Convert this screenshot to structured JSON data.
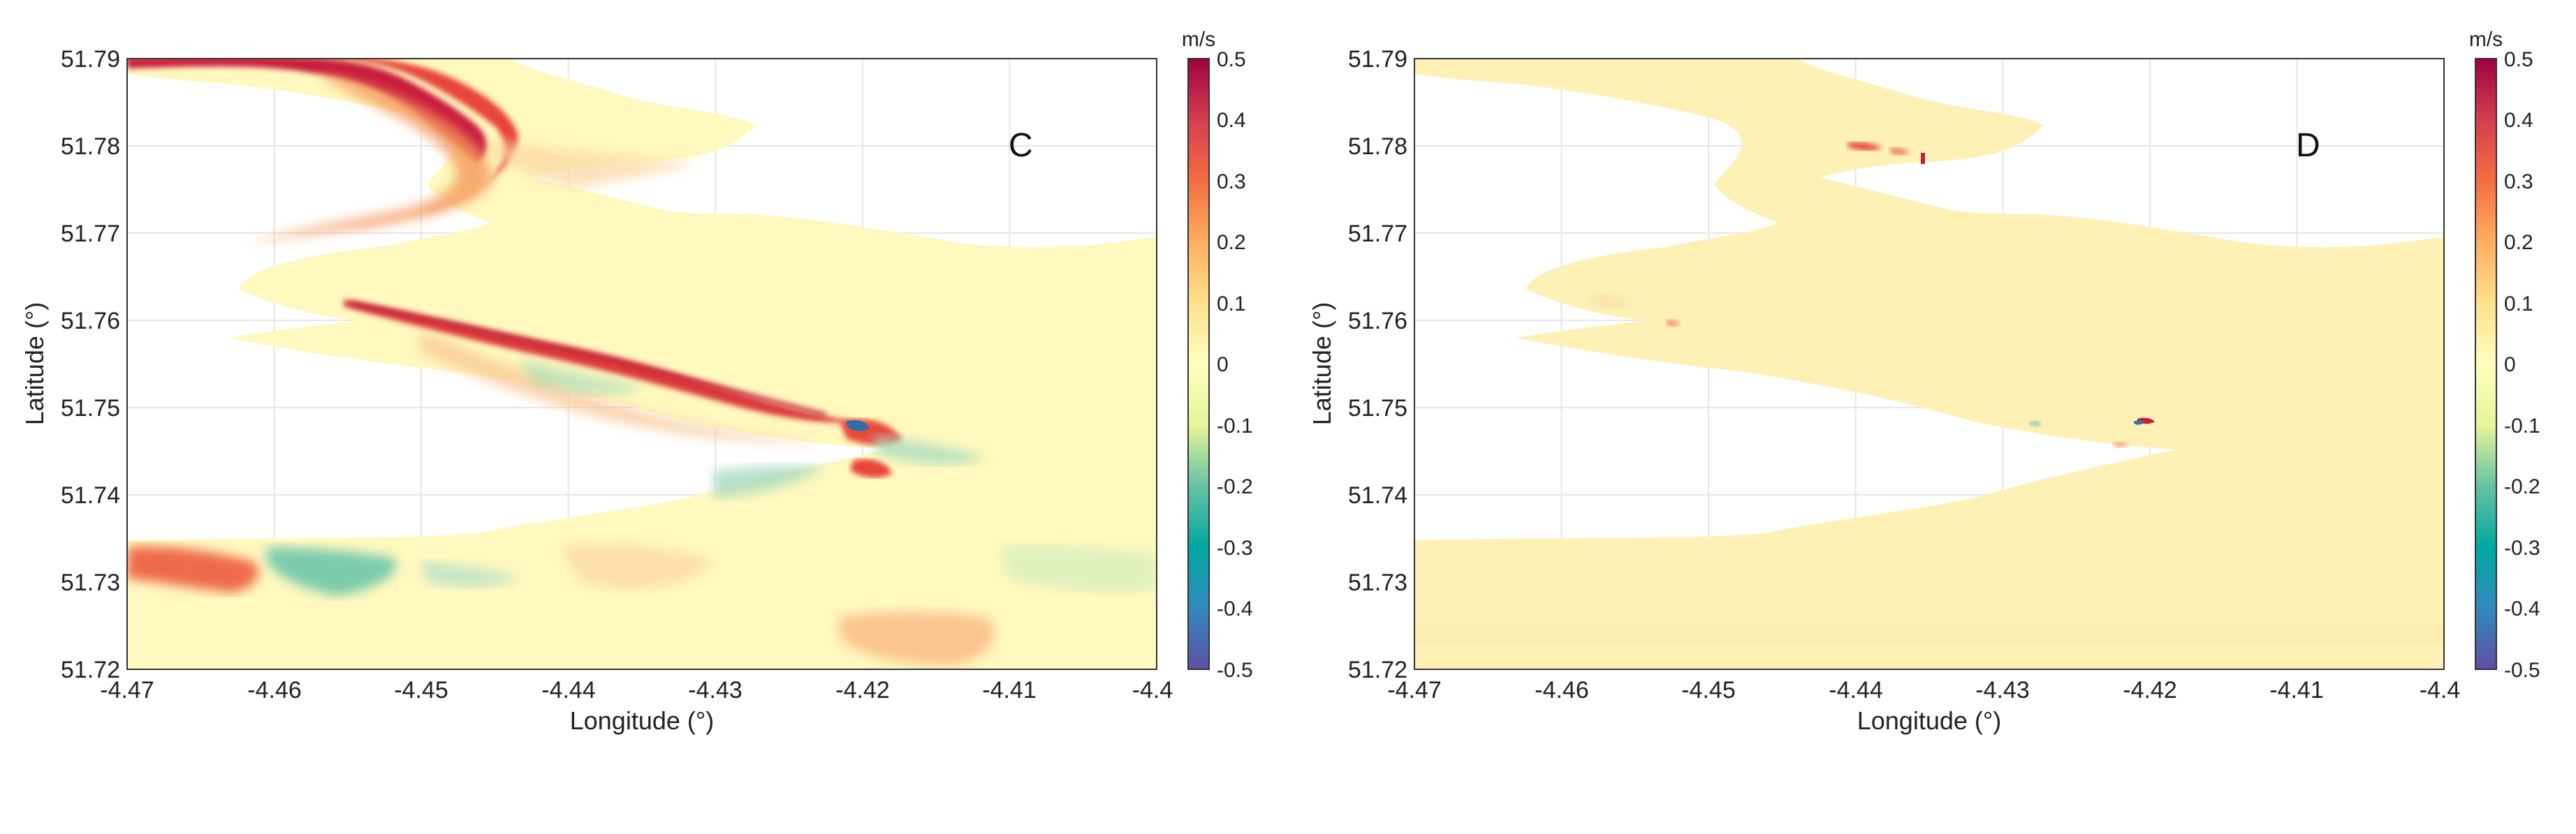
{
  "chart_data": [
    {
      "type": "heatmap",
      "panel_label": "C",
      "xlabel": "Longitude (°)",
      "ylabel": "Latitude (°)",
      "xlim": [
        -4.47,
        -4.4
      ],
      "ylim": [
        51.72,
        51.79
      ],
      "x_ticks": [
        "-4.47",
        "-4.46",
        "-4.45",
        "-4.44",
        "-4.43",
        "-4.42",
        "-4.41",
        "-4.4"
      ],
      "y_ticks": [
        "51.72",
        "51.73",
        "51.74",
        "51.75",
        "51.76",
        "51.77",
        "51.78",
        "51.79"
      ],
      "grid": true,
      "colorbar": {
        "unit": "m/s",
        "range": [
          -0.5,
          0.5
        ],
        "ticks": [
          "0.5",
          "0.4",
          "0.3",
          "0.2",
          "0.1",
          "0",
          "-0.1",
          "-0.2",
          "-0.3",
          "-0.4",
          "-0.5"
        ]
      },
      "features": [
        {
          "description": "strong positive velocity along upper channel",
          "lon_range": [
            -4.47,
            -4.442
          ],
          "lat_range": [
            51.774,
            51.79
          ],
          "value": 0.45
        },
        {
          "description": "positive band along central channel",
          "lon_range": [
            -4.457,
            -4.422
          ],
          "lat_range": [
            51.748,
            51.763
          ],
          "value": 0.35
        },
        {
          "description": "positive patch near river mouth",
          "lon_range": [
            -4.422,
            -4.416
          ],
          "lat_range": [
            51.742,
            51.75
          ],
          "value": 0.35
        },
        {
          "description": "negative patch near river mouth",
          "lon_range": [
            -4.421,
            -4.418
          ],
          "lat_range": [
            51.747,
            51.749
          ],
          "value": -0.45
        },
        {
          "description": "positive patch lower left",
          "lon_range": [
            -4.47,
            -4.461
          ],
          "lat_range": [
            51.73,
            51.734
          ],
          "value": 0.35
        },
        {
          "description": "negative patch lower left",
          "lon_range": [
            -4.459,
            -4.448
          ],
          "lat_range": [
            51.731,
            51.735
          ],
          "value": -0.2
        },
        {
          "description": "weak positive patch bottom right",
          "lon_range": [
            -4.424,
            -4.411
          ],
          "lat_range": [
            51.72,
            51.724
          ],
          "value": 0.15
        }
      ]
    },
    {
      "type": "heatmap",
      "panel_label": "D",
      "xlabel": "Longitude (°)",
      "ylabel": "Latitude (°)",
      "xlim": [
        -4.47,
        -4.4
      ],
      "ylim": [
        51.72,
        51.79
      ],
      "x_ticks": [
        "-4.47",
        "-4.46",
        "-4.45",
        "-4.44",
        "-4.43",
        "-4.42",
        "-4.41",
        "-4.4"
      ],
      "y_ticks": [
        "51.72",
        "51.73",
        "51.74",
        "51.75",
        "51.76",
        "51.77",
        "51.78",
        "51.79"
      ],
      "grid": true,
      "colorbar": {
        "unit": "m/s",
        "range": [
          -0.5,
          0.5
        ],
        "ticks": [
          "0.5",
          "0.4",
          "0.3",
          "0.2",
          "0.1",
          "0",
          "-0.1",
          "-0.2",
          "-0.3",
          "-0.4",
          "-0.5"
        ]
      },
      "features": [
        {
          "description": "small positive spots",
          "lon_range": [
            -4.439,
            -4.434
          ],
          "lat_range": [
            51.778,
            51.781
          ],
          "value": 0.4
        },
        {
          "description": "small positive spot",
          "lon_range": [
            -4.452,
            -4.451
          ],
          "lat_range": [
            51.758,
            51.76
          ],
          "value": 0.2
        },
        {
          "description": "small mixed spot near river mouth",
          "lon_range": [
            -4.421,
            -4.419
          ],
          "lat_range": [
            51.747,
            51.749
          ],
          "value": 0.4
        },
        {
          "description": "small negative spot near river mouth",
          "lon_range": [
            -4.421,
            -4.42
          ],
          "lat_range": [
            51.747,
            51.749
          ],
          "value": -0.3
        }
      ]
    }
  ]
}
